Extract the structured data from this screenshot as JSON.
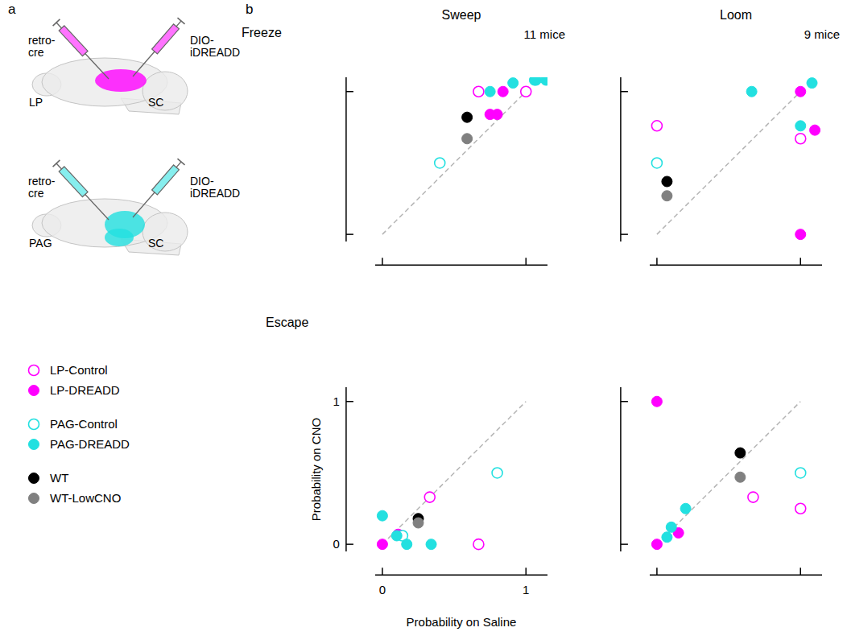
{
  "panel_labels": [
    "a",
    "b"
  ],
  "diagram": {
    "brains": [
      {
        "color": "#ff00ff",
        "injections": [
          {
            "label": "retro-cre",
            "target": "LP"
          },
          {
            "label": "DIO-iDREADD",
            "target": "SC"
          }
        ]
      },
      {
        "color": "#22e0e0",
        "injections": [
          {
            "label": "retro-cre",
            "target": "PAG"
          },
          {
            "label": "DIO-iDREADD",
            "target": "SC"
          }
        ]
      }
    ]
  },
  "figure": {
    "rows": [
      "Freeze",
      "Escape"
    ],
    "columns": [
      "Sweep",
      "Loom"
    ]
  },
  "chart_data": [
    {
      "type": "scatter",
      "annotation": "11 mice",
      "legend": "left",
      "tick_labels": false,
      "xlim": [
        -0.05,
        1.15
      ],
      "ylim": [
        -0.05,
        1.1
      ],
      "xticks": [
        0,
        1
      ],
      "yticks": [
        0,
        1
      ],
      "series": [
        {
          "name": "LP-Control",
          "color": "#ff00ff",
          "marker": "open",
          "x": [
            0.67,
            1.0
          ],
          "values": [
            1.0,
            1.0
          ]
        },
        {
          "name": "LP-DREADD",
          "color": "#ff00ff",
          "marker": "filled",
          "x": [
            0.75,
            0.8,
            0.84
          ],
          "values": [
            0.84,
            0.84,
            1.0
          ]
        },
        {
          "name": "PAG-Control",
          "color": "#22e0e0",
          "marker": "open",
          "x": [
            0.4
          ],
          "values": [
            0.5
          ]
        },
        {
          "name": "PAG-DREADD",
          "color": "#22e0e0",
          "marker": "filled",
          "x": [
            0.75,
            0.91,
            1.06,
            1.07,
            1.14
          ],
          "values": [
            1.0,
            1.06,
            1.08,
            1.08,
            1.08
          ]
        },
        {
          "name": "WT",
          "color": "#000000",
          "marker": "filled",
          "x": [
            0.59
          ],
          "values": [
            0.82
          ]
        },
        {
          "name": "WT-LowCNO",
          "color": "#808080",
          "marker": "filled",
          "x": [
            0.59
          ],
          "values": [
            0.67
          ]
        }
      ]
    },
    {
      "type": "scatter",
      "annotation": "9 mice",
      "tick_labels": false,
      "xlim": [
        -0.05,
        1.15
      ],
      "ylim": [
        -0.05,
        1.1
      ],
      "xticks": [
        0,
        1
      ],
      "yticks": [
        0,
        1
      ],
      "series": [
        {
          "name": "LP-Control",
          "color": "#ff00ff",
          "marker": "open",
          "x": [
            0,
            1.0
          ],
          "values": [
            0.76,
            0.67
          ]
        },
        {
          "name": "LP-DREADD",
          "color": "#ff00ff",
          "marker": "filled",
          "x": [
            1.0,
            1.1,
            1.0
          ],
          "values": [
            1.0,
            0.73,
            0
          ]
        },
        {
          "name": "PAG-Control",
          "color": "#22e0e0",
          "marker": "open",
          "x": [
            0
          ],
          "values": [
            0.5
          ]
        },
        {
          "name": "PAG-DREADD",
          "color": "#22e0e0",
          "marker": "filled",
          "x": [
            0.66,
            1.08,
            1.0
          ],
          "values": [
            1.0,
            1.06,
            0.76
          ]
        },
        {
          "name": "WT",
          "color": "#000000",
          "marker": "filled",
          "x": [
            0.07
          ],
          "values": [
            0.37
          ]
        },
        {
          "name": "WT-LowCNO",
          "color": "#808080",
          "marker": "filled",
          "x": [
            0.07
          ],
          "values": [
            0.27
          ]
        }
      ]
    },
    {
      "type": "scatter",
      "x_label": "Probability on Saline",
      "y_label": "Probability on CNO",
      "tick_labels": true,
      "xlim": [
        -0.05,
        1.15
      ],
      "ylim": [
        -0.05,
        1.1
      ],
      "xticks": [
        0,
        1
      ],
      "yticks": [
        0,
        1
      ],
      "series": [
        {
          "name": "LP-Control",
          "color": "#ff00ff",
          "marker": "open",
          "x": [
            0.33,
            0.67
          ],
          "values": [
            0.33,
            0
          ]
        },
        {
          "name": "LP-DREADD",
          "color": "#ff00ff",
          "marker": "filled",
          "x": [
            0,
            0.11
          ],
          "values": [
            0,
            0.07
          ]
        },
        {
          "name": "PAG-Control",
          "color": "#22e0e0",
          "marker": "open",
          "x": [
            0.8,
            0.14
          ],
          "values": [
            0.5,
            0.06
          ]
        },
        {
          "name": "PAG-DREADD",
          "color": "#22e0e0",
          "marker": "filled",
          "x": [
            0,
            0.1,
            0.17,
            0.34
          ],
          "values": [
            0.2,
            0.06,
            0,
            0
          ]
        },
        {
          "name": "WT",
          "color": "#000000",
          "marker": "filled",
          "x": [
            0.25
          ],
          "values": [
            0.18
          ]
        },
        {
          "name": "WT-LowCNO",
          "color": "#808080",
          "marker": "filled",
          "x": [
            0.25
          ],
          "values": [
            0.15
          ]
        }
      ]
    },
    {
      "type": "scatter",
      "tick_labels": false,
      "xlim": [
        -0.05,
        1.15
      ],
      "ylim": [
        -0.05,
        1.1
      ],
      "xticks": [
        0,
        1
      ],
      "yticks": [
        0,
        1
      ],
      "series": [
        {
          "name": "LP-Control",
          "color": "#ff00ff",
          "marker": "open",
          "x": [
            0.67,
            1.0
          ],
          "values": [
            0.33,
            0.25
          ]
        },
        {
          "name": "LP-DREADD",
          "color": "#ff00ff",
          "marker": "filled",
          "x": [
            0,
            0,
            0.15
          ],
          "values": [
            1.0,
            0,
            0.08
          ]
        },
        {
          "name": "PAG-Control",
          "color": "#22e0e0",
          "marker": "open",
          "x": [
            1.0
          ],
          "values": [
            0.5
          ]
        },
        {
          "name": "PAG-DREADD",
          "color": "#22e0e0",
          "marker": "filled",
          "x": [
            0.07,
            0.1,
            0.2
          ],
          "values": [
            0.05,
            0.12,
            0.25
          ]
        },
        {
          "name": "WT",
          "color": "#000000",
          "marker": "filled",
          "x": [
            0.58
          ],
          "values": [
            0.64
          ]
        },
        {
          "name": "WT-LowCNO",
          "color": "#808080",
          "marker": "filled",
          "x": [
            0.58
          ],
          "values": [
            0.47
          ]
        }
      ]
    }
  ]
}
